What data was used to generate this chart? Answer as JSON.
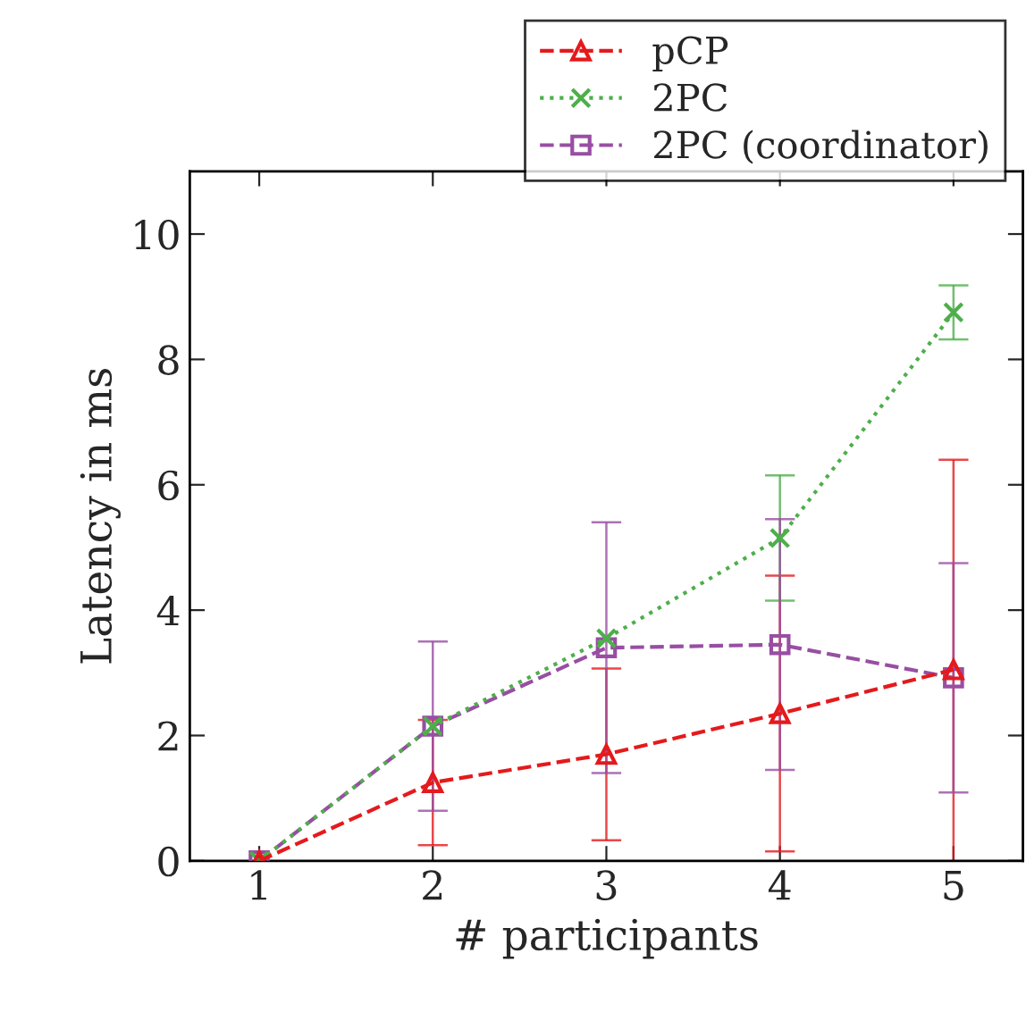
{
  "chart_data": {
    "type": "line",
    "xlabel": "# participants",
    "ylabel": "Latency in ms",
    "x": [
      1,
      2,
      3,
      4,
      5
    ],
    "series": [
      {
        "name": "pCP",
        "color": "#e41a1c",
        "marker": "triangle",
        "line_style": "dashed",
        "values": [
          0,
          1.25,
          1.7,
          2.35,
          3.05
        ],
        "errors": [
          null,
          1.0,
          1.37,
          2.2,
          3.35
        ]
      },
      {
        "name": "2PC",
        "color": "#4daf4a",
        "marker": "cross",
        "line_style": "dotted",
        "values": [
          0,
          2.15,
          3.55,
          5.15,
          8.75
        ],
        "errors": [
          null,
          null,
          null,
          1.0,
          0.43
        ]
      },
      {
        "name": "2PC (coordinator)",
        "color": "#984ea3",
        "marker": "square",
        "line_style": "dashed",
        "values": [
          0,
          2.15,
          3.4,
          3.45,
          2.92
        ],
        "errors": [
          null,
          1.35,
          2.0,
          2.0,
          1.83
        ]
      }
    ],
    "xlim": [
      0.6,
      5.4
    ],
    "ylim": [
      0,
      11
    ],
    "xticks": [
      1,
      2,
      3,
      4,
      5
    ],
    "yticks": [
      0,
      2,
      4,
      6,
      8,
      10
    ],
    "grid": false,
    "legend": "top right"
  }
}
